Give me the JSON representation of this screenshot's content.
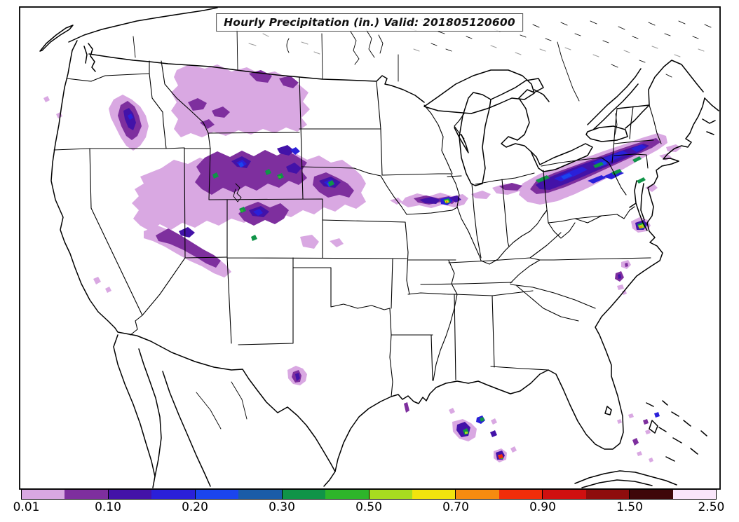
{
  "title": {
    "text": "Hourly Precipitation (in.) Valid: 201805120600"
  },
  "colorbar": {
    "tick_labels": [
      "0.01",
      "0.10",
      "0.20",
      "0.30",
      "0.50",
      "0.70",
      "0.90",
      "1.50",
      "2.50"
    ],
    "segment_colors": [
      "#d9a8e2",
      "#7e2f9e",
      "#4312a8",
      "#2a20d9",
      "#1b45ee",
      "#1a5ca8",
      "#109448",
      "#2eb52a",
      "#a8dc20",
      "#f2e30e",
      "#f68b10",
      "#f12d0a",
      "#d01010",
      "#8e0d0d",
      "#3e0708",
      "#f9e6fa"
    ],
    "border_color": "#000000",
    "units": "in."
  },
  "map": {
    "background_color": "#ffffff",
    "boundary_color": "#000000",
    "canada_water_color": "#9a9a9a"
  },
  "chart_data": {
    "type": "heatmap",
    "title": "Hourly Precipitation (in.) Valid: 201805120600",
    "variable": "Hourly Precipitation",
    "units": "in.",
    "valid_time": "201805120600",
    "colorbar_tick_labels": [
      "0.01",
      "0.10",
      "0.20",
      "0.30",
      "0.50",
      "0.70",
      "0.90",
      "1.50",
      "2.50"
    ],
    "colorbar_colors": [
      "#d9a8e2",
      "#7e2f9e",
      "#4312a8",
      "#2a20d9",
      "#1b45ee",
      "#1a5ca8",
      "#109448",
      "#2eb52a",
      "#a8dc20",
      "#f2e30e",
      "#f68b10",
      "#f12d0a",
      "#d01010",
      "#8e0d0d",
      "#3e0708",
      "#f9e6fa"
    ],
    "legend_position": "bottom",
    "regions": [
      {
        "area": "Northern Rockies / Great Basin (ID, MT, WY, UT, CO, into NE panhandle)",
        "coverage": "widespread light amounts 0.01-0.10 with embedded cells 0.10-0.30 and isolated 0.30-0.50 cores"
      },
      {
        "area": "Midwest to Northeast band (IA, IL, IN, OH, Lake Erie, PA, NY)",
        "coverage": "narrow WSW-ENE band 0.01-0.25 with 0.30-0.50 streaks; intense cell in SE Iowa reaching 0.70-0.90"
      },
      {
        "area": "Central Texas",
        "coverage": "isolated cell 0.05-0.15"
      },
      {
        "area": "Gulf of Mexico offshore",
        "coverage": "scattered convective cells, cores 0.30-0.90"
      },
      {
        "area": "Chesapeake Bay / Delmarva",
        "coverage": "small cell with 0.50-0.80 core"
      },
      {
        "area": "Eastern North Carolina and Bahamas vicinity",
        "coverage": "isolated specks 0.01-0.20"
      }
    ]
  }
}
